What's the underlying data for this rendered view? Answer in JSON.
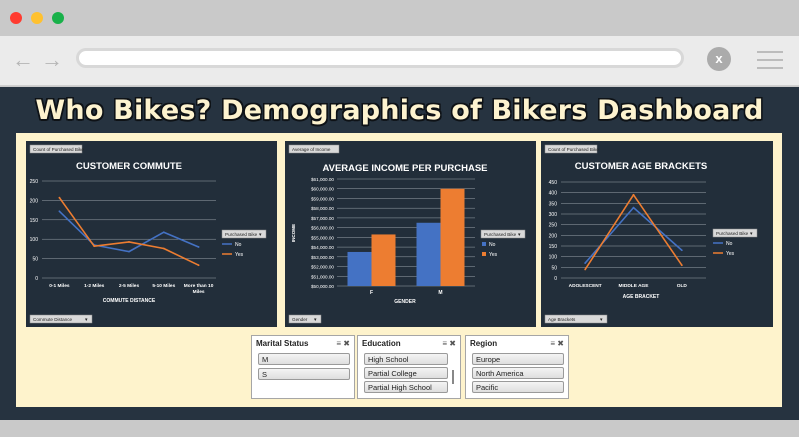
{
  "title": "Who Bikes? Demographics of Bikers Dashboard",
  "browser": {
    "close_label": "x"
  },
  "colors": {
    "no": "#4472c4",
    "yes": "#ed7d31",
    "panel": "#222e3a",
    "background": "#263340",
    "cream": "#fef3cc"
  },
  "charts": {
    "commute": {
      "pivot_field": "Count of Purchased Bike",
      "filter_field": "Commute Distance",
      "legend_title": "Purchased Bike",
      "axis_title": "COMMUTE DISTANCE"
    },
    "income": {
      "pivot_field": "Average of Income",
      "filter_field": "Gender",
      "legend_title": "Purchased Bike",
      "axis_title": "GENDER",
      "ylabel": "INCOME"
    },
    "age": {
      "pivot_field": "Count of Purchased Bike",
      "filter_field": "Age Brackets",
      "legend_title": "Purchased Bike",
      "axis_title": "AGE BRACKET"
    }
  },
  "chart_data": [
    {
      "type": "line",
      "title": "CUSTOMER COMMUTE",
      "xlabel": "COMMUTE DISTANCE",
      "ylabel": "",
      "categories": [
        "0-1 Miles",
        "1-2 Miles",
        "2-5 Miles",
        "5-10 Miles",
        "More than 10 Miles"
      ],
      "series": [
        {
          "name": "No",
          "values": [
            172,
            85,
            68,
            118,
            80
          ]
        },
        {
          "name": "Yes",
          "values": [
            207,
            82,
            93,
            76,
            33
          ]
        }
      ],
      "ylim": [
        0,
        250
      ],
      "yticks": [
        0,
        50,
        100,
        150,
        200,
        250
      ],
      "legend": "right"
    },
    {
      "type": "bar",
      "title": "AVERAGE INCOME PER PURCHASE",
      "xlabel": "GENDER",
      "ylabel": "INCOME",
      "categories": [
        "F",
        "M"
      ],
      "series": [
        {
          "name": "No",
          "values": [
            53500,
            56500
          ]
        },
        {
          "name": "Yes",
          "values": [
            55300,
            60000
          ]
        }
      ],
      "ylim": [
        50000,
        61000
      ],
      "yticks": [
        "$50,000.00",
        "$51,000.00",
        "$52,000.00",
        "$53,000.00",
        "$54,000.00",
        "$55,000.00",
        "$56,000.00",
        "$57,000.00",
        "$58,000.00",
        "$59,000.00",
        "$60,000.00",
        "$61,000.00"
      ],
      "legend": "right"
    },
    {
      "type": "line",
      "title": "CUSTOMER AGE BRACKETS",
      "xlabel": "AGE BRACKET",
      "ylabel": "",
      "categories": [
        "ADOLESCENT",
        "MIDDLE AGE",
        "OLD"
      ],
      "series": [
        {
          "name": "No",
          "values": [
            70,
            330,
            130
          ]
        },
        {
          "name": "Yes",
          "values": [
            40,
            390,
            60
          ]
        }
      ],
      "ylim": [
        0,
        450
      ],
      "yticks": [
        0,
        50,
        100,
        150,
        200,
        250,
        300,
        350,
        400,
        450
      ],
      "legend": "right"
    }
  ],
  "slicers": {
    "marital": {
      "header": "Marital Status",
      "items": [
        "M",
        "S"
      ]
    },
    "education": {
      "header": "Education",
      "items": [
        "High School",
        "Partial College",
        "Partial High School"
      ]
    },
    "region": {
      "header": "Region",
      "items": [
        "Europe",
        "North America",
        "Pacific"
      ]
    }
  }
}
